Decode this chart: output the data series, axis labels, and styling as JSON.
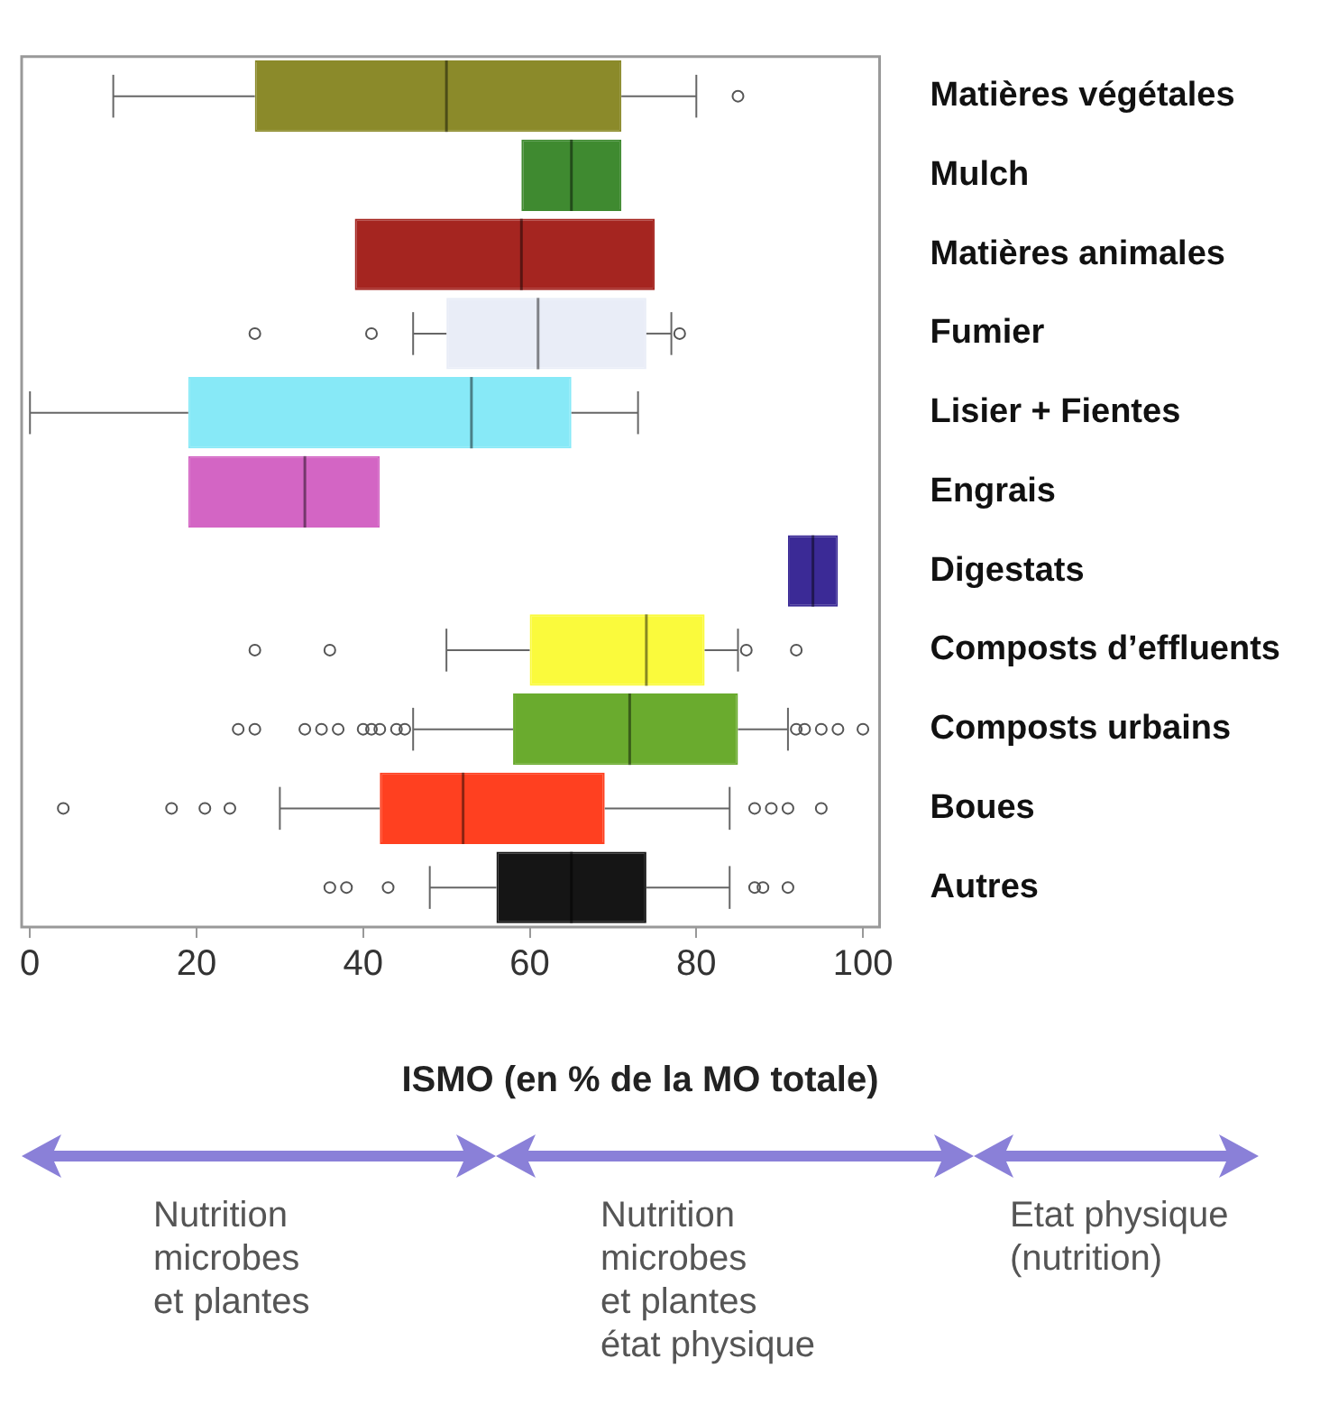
{
  "chart_data": {
    "type": "box",
    "orientation": "horizontal",
    "xlabel": "ISMO (en % de la MO totale)",
    "categories": [
      "Matières végétales",
      "Mulch",
      "Matières animales",
      "Fumier",
      "Lisier + Fientes",
      "Engrais",
      "Digestats",
      "Composts d’effluents",
      "Composts urbains",
      "Boues",
      "Autres"
    ],
    "colors": [
      "#8b8a2a",
      "#3f8a30",
      "#a52520",
      "#e9edf7",
      "#87e9f7",
      "#d365c4",
      "#3b2a96",
      "#fafa3c",
      "#6aab2e",
      "#ff4020",
      "#151515"
    ],
    "boxes": [
      {
        "low": 10,
        "q1": 27,
        "median": 50,
        "q3": 71,
        "high": 80,
        "outliers": [
          85
        ]
      },
      {
        "low": 59,
        "q1": 59,
        "median": 65,
        "q3": 71,
        "high": 71
      },
      {
        "low": 39,
        "q1": 39,
        "median": 59,
        "q3": 75,
        "high": 75
      },
      {
        "low": 46,
        "q1": 50,
        "median": 61,
        "q3": 74,
        "high": 77,
        "outliers": [
          27,
          41,
          78
        ]
      },
      {
        "low": 0,
        "q1": 19,
        "median": 53,
        "q3": 65,
        "high": 73
      },
      {
        "low": 19,
        "q1": 19,
        "median": 33,
        "q3": 42,
        "high": 42
      },
      {
        "low": 91,
        "q1": 91,
        "median": 94,
        "q3": 97,
        "high": 97
      },
      {
        "low": 50,
        "q1": 60,
        "median": 74,
        "q3": 81,
        "high": 85,
        "outliers": [
          27,
          36,
          86,
          92
        ]
      },
      {
        "low": 46,
        "q1": 58,
        "median": 72,
        "q3": 85,
        "high": 91,
        "outliers": [
          25,
          27,
          33,
          35,
          37,
          40,
          41,
          42,
          44,
          45,
          92,
          93,
          95,
          97,
          100
        ]
      },
      {
        "low": 30,
        "q1": 42,
        "median": 52,
        "q3": 69,
        "high": 84,
        "outliers": [
          4,
          17,
          21,
          24,
          87,
          89,
          91,
          95
        ]
      },
      {
        "low": 48,
        "q1": 56,
        "median": 65,
        "q3": 74,
        "high": 84,
        "outliers": [
          36,
          38,
          43,
          87,
          88,
          91
        ]
      }
    ],
    "xlim": [
      -1,
      102
    ],
    "xticks": [
      0,
      20,
      40,
      60,
      80,
      100
    ],
    "grid": false,
    "legend": false,
    "annotations": [
      "Nutrition\nmicrobes\net plantes",
      "Nutrition\nmicrobes\net plantes\nétat physique",
      "Etat physique\n(nutrition)"
    ]
  }
}
